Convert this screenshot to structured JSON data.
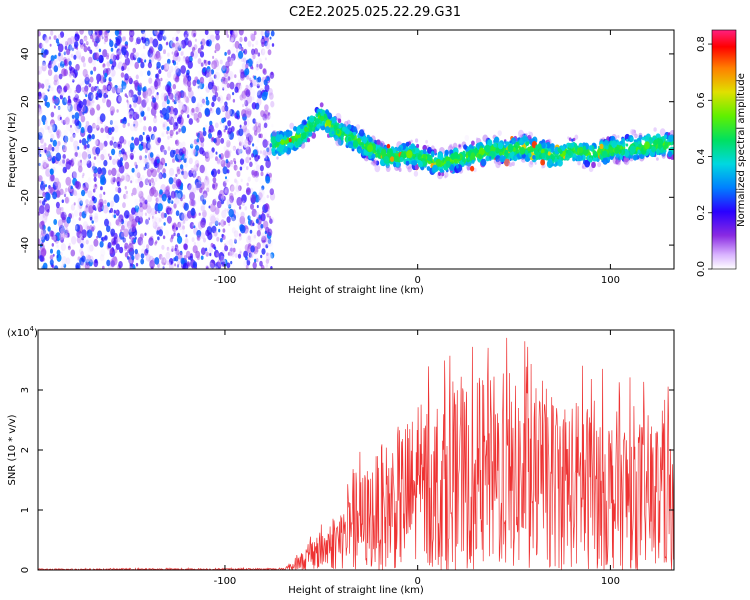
{
  "title": "C2E2.2025.025.22.29.G31",
  "chart_data": [
    {
      "type": "heatmap",
      "name": "spectrogram",
      "xlabel": "Height of straight line (km)",
      "ylabel": "Frequency (Hz)",
      "xlim": [
        -197,
        133
      ],
      "ylim": [
        -50,
        50
      ],
      "x_ticks": [
        -100,
        0,
        100
      ],
      "x_tick_labels": [
        "-100",
        "0",
        "100"
      ],
      "y_ticks": [
        -40,
        -20,
        0,
        20,
        40
      ],
      "y_tick_labels": [
        "-40",
        "-20",
        "0",
        "20",
        "40"
      ],
      "noise_region_end_km": -75,
      "signal_track": {
        "x": [
          -75,
          -65,
          -60,
          -55,
          -50,
          -45,
          -40,
          -35,
          -30,
          -25,
          -20,
          -15,
          -10,
          -5,
          0,
          5,
          10,
          15,
          20,
          25,
          30,
          35,
          40,
          45,
          50,
          55,
          60,
          65,
          70,
          75,
          80,
          85,
          90,
          95,
          100,
          105,
          110,
          115,
          120,
          125,
          133
        ],
        "y": [
          2,
          4,
          6,
          10,
          14,
          10,
          7,
          5,
          3,
          1,
          -2,
          -3,
          -3,
          -2,
          -3,
          -4,
          -6,
          -5,
          -4,
          -3,
          -2,
          -1,
          0,
          -1,
          0,
          1,
          0,
          -1,
          -3,
          -2,
          0,
          -1,
          -2,
          -1,
          0,
          0,
          1,
          1,
          2,
          2,
          2
        ]
      },
      "colorbar": {
        "label": "Normalized spectral amplitude",
        "range": [
          0,
          0.85
        ],
        "ticks": [
          0.0,
          0.2,
          0.4,
          0.6,
          0.8
        ],
        "tick_labels": [
          "0.0",
          "0.2",
          "0.4",
          "0.6",
          "0.8"
        ]
      }
    },
    {
      "type": "line",
      "name": "snr",
      "xlabel": "Height of straight line (km)",
      "ylabel": "SNR (10 * v/v)",
      "y_scale_label": "(x10",
      "y_scale_exp": "4",
      "xlim": [
        -197,
        133
      ],
      "ylim": [
        0,
        4
      ],
      "x_ticks": [
        -100,
        0,
        100
      ],
      "x_tick_labels": [
        "-100",
        "0",
        "100"
      ],
      "y_ticks": [
        0,
        1,
        2,
        3
      ],
      "y_tick_labels": [
        "0",
        "1",
        "2",
        "3"
      ],
      "color": "#ee3333",
      "envelope": {
        "x": [
          -197,
          -70,
          -60,
          -45,
          -40,
          -30,
          -20,
          -10,
          0,
          10,
          20,
          30,
          40,
          50,
          60,
          70,
          80,
          90,
          100,
          110,
          120,
          133
        ],
        "y": [
          0.02,
          0.03,
          0.3,
          0.9,
          1.1,
          1.6,
          2.0,
          2.4,
          2.7,
          2.9,
          3.0,
          3.2,
          3.3,
          3.1,
          3.1,
          3.0,
          2.9,
          2.8,
          2.7,
          2.6,
          2.6,
          2.5
        ]
      }
    }
  ],
  "colors": {
    "axis": "#000000",
    "snr_line": "#ee3333"
  }
}
